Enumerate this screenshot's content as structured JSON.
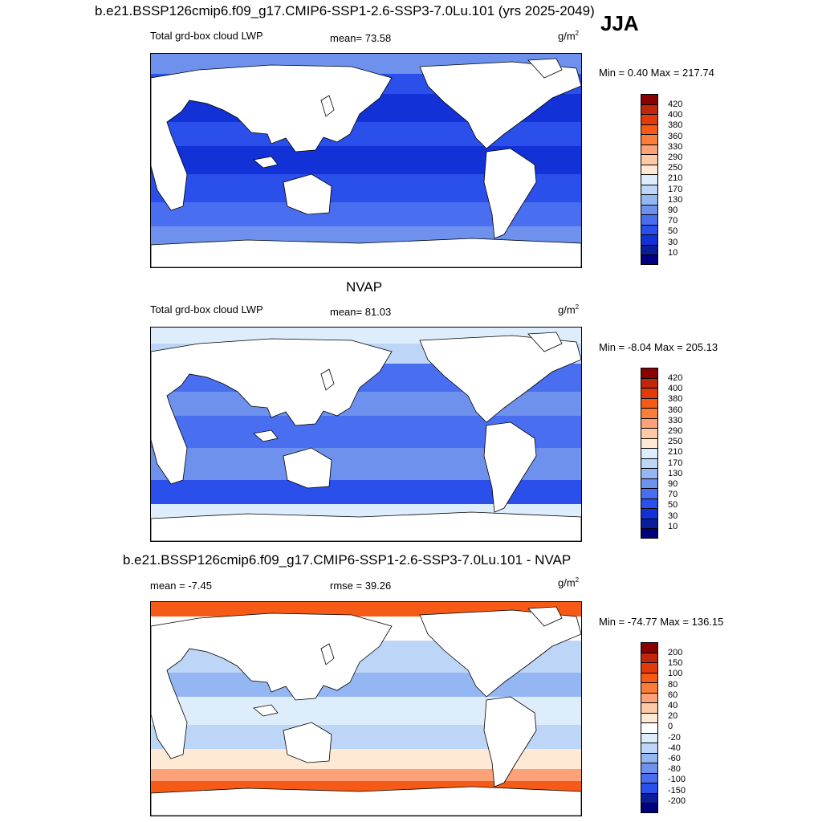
{
  "header": {
    "main_title": "b.e21.BSSP126cmip6.f09_g17.CMIP6-SSP1-2.6-SSP3-7.0Lu.101 (yrs 2025-2049)",
    "season": "JJA"
  },
  "chart_data": [
    {
      "type": "heatmap",
      "title": "",
      "left_label": "Total grd-box cloud LWP",
      "center_label": "mean=  73.58",
      "units": "g/m",
      "units_exp": "2",
      "minmax": "Min =   0.40 Max = 217.74",
      "mean": 73.58,
      "min": 0.4,
      "max": 217.74,
      "levels": [
        "420",
        "400",
        "380",
        "360",
        "330",
        "290",
        "250",
        "210",
        "170",
        "130",
        "90",
        "70",
        "50",
        "30",
        "10"
      ],
      "colors": [
        "#8b0000",
        "#c2260c",
        "#e33a0b",
        "#f55a17",
        "#fa7d3a",
        "#fca178",
        "#fdc9a6",
        "#fee9d5",
        "#deedfb",
        "#bdd5f7",
        "#94b6f2",
        "#6e91ed",
        "#4a6ef0",
        "#2a4fea",
        "#1232d8",
        "#0a1e9c",
        "#00007f"
      ],
      "map_fill": "#1f48e0"
    },
    {
      "type": "heatmap",
      "title": "NVAP",
      "left_label": "Total grd-box cloud LWP",
      "center_label": "mean=  81.03",
      "units": "g/m",
      "units_exp": "2",
      "minmax": "Min =  -8.04 Max = 205.13",
      "mean": 81.03,
      "min": -8.04,
      "max": 205.13,
      "levels": [
        "420",
        "400",
        "380",
        "360",
        "330",
        "290",
        "250",
        "210",
        "170",
        "130",
        "90",
        "70",
        "50",
        "30",
        "10"
      ],
      "colors": [
        "#8b0000",
        "#c2260c",
        "#e33a0b",
        "#f55a17",
        "#fa7d3a",
        "#fca178",
        "#fdc9a6",
        "#fee9d5",
        "#deedfb",
        "#bdd5f7",
        "#94b6f2",
        "#6e91ed",
        "#4a6ef0",
        "#2a4fea",
        "#1232d8",
        "#0a1e9c",
        "#00007f"
      ],
      "map_fill": "#6e91ed"
    },
    {
      "type": "heatmap",
      "title": "b.e21.BSSP126cmip6.f09_g17.CMIP6-SSP1-2.6-SSP3-7.0Lu.101 - NVAP",
      "left_label": "mean =  -7.45",
      "center_label": "rmse =  39.26",
      "units": "g/m",
      "units_exp": "2",
      "minmax": "Min = -74.77 Max = 136.15",
      "mean": -7.45,
      "rmse": 39.26,
      "min": -74.77,
      "max": 136.15,
      "levels": [
        "200",
        "150",
        "100",
        "80",
        "60",
        "40",
        "20",
        "0",
        "-20",
        "-40",
        "-60",
        "-80",
        "-100",
        "-150",
        "-200"
      ],
      "colors": [
        "#8b0000",
        "#c2260c",
        "#e33a0b",
        "#f55a17",
        "#fa7d3a",
        "#fca178",
        "#fdc9a6",
        "#fee9d5",
        "#ffffff",
        "#deedfb",
        "#bdd5f7",
        "#94b6f2",
        "#6e91ed",
        "#4a6ef0",
        "#2a4fea",
        "#0a1e9c",
        "#00007f"
      ],
      "map_fill": "#94b6f2"
    }
  ]
}
